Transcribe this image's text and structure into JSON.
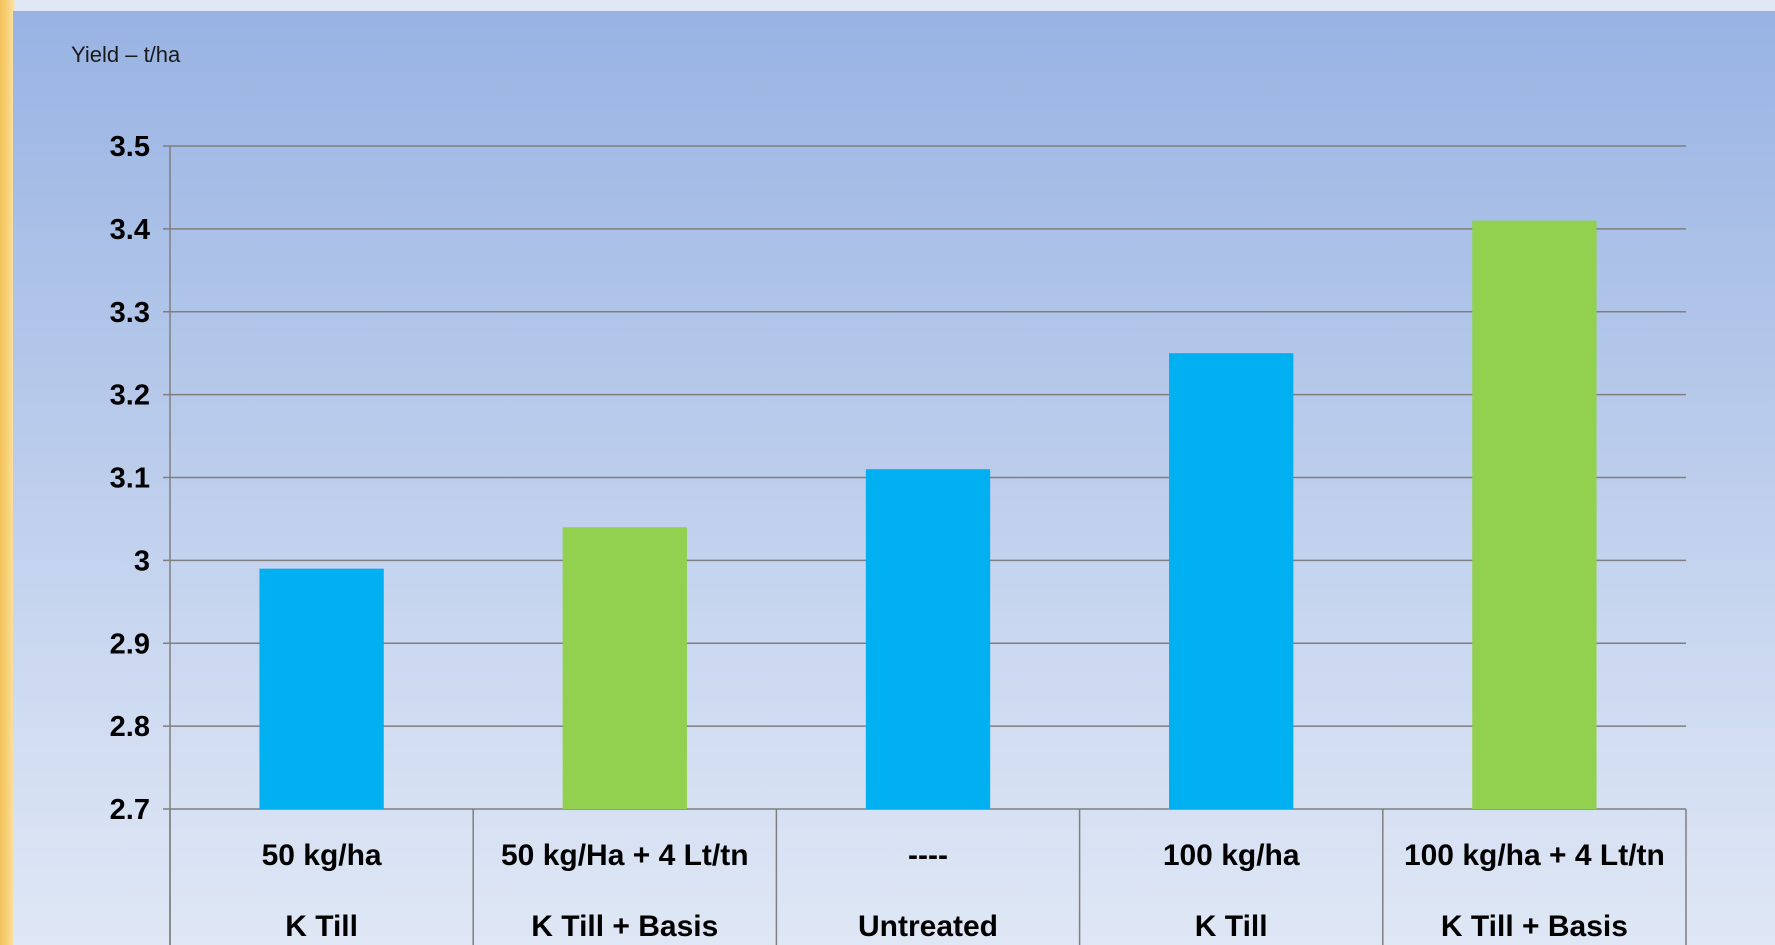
{
  "chart_data": {
    "type": "bar",
    "title": "",
    "ylabel": "Yield – t/ha",
    "xlabel": "",
    "ylim": [
      2.7,
      3.5
    ],
    "yticks": [
      "2.7",
      "2.8",
      "2.9",
      "3",
      "3.1",
      "3.2",
      "3.3",
      "3.4",
      "3.5"
    ],
    "grid": true,
    "categories": [
      {
        "line1": "50 kg/ha",
        "line2": "K Till"
      },
      {
        "line1": "50 kg/Ha + 4 Lt/tn",
        "line2": "K Till + Basis"
      },
      {
        "line1": "----",
        "line2": "Untreated"
      },
      {
        "line1": "100 kg/ha",
        "line2": "K Till"
      },
      {
        "line1": "100 kg/ha + 4 Lt/tn",
        "line2": "K Till  + Basis"
      }
    ],
    "values": [
      2.99,
      3.04,
      3.11,
      3.25,
      3.41
    ],
    "bar_colors": [
      "#00b0f0",
      "#92d050",
      "#00b0f0",
      "#00b0f0",
      "#92d050"
    ]
  }
}
